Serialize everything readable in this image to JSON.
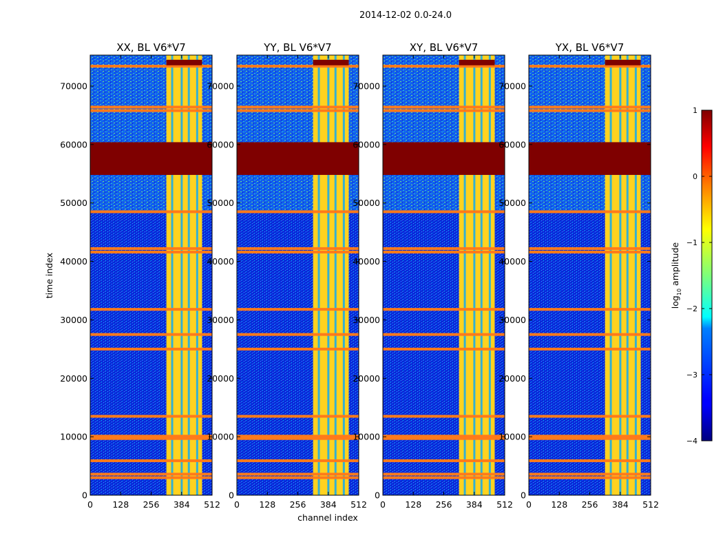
{
  "suptitle": "2014-12-02 0.0-24.0",
  "chart_data": {
    "type": "heatmap",
    "panels": [
      {
        "title": "XX, BL V6*V7"
      },
      {
        "title": "YY, BL V6*V7"
      },
      {
        "title": "XY, BL V6*V7"
      },
      {
        "title": "YX, BL V6*V7"
      }
    ],
    "xlabel": "channel index",
    "ylabel": "time index",
    "xlim": [
      0,
      512
    ],
    "ylim": [
      0,
      75300
    ],
    "xticks": [
      0,
      128,
      256,
      384,
      512
    ],
    "yticks": [
      0,
      10000,
      20000,
      30000,
      40000,
      50000,
      60000,
      70000
    ],
    "colorbar": {
      "label_main": "log",
      "label_sub": "10",
      "label_rest": " amplitude",
      "range": [
        -4,
        1
      ],
      "ticks": [
        1,
        0,
        -1,
        -2,
        -3,
        -4
      ],
      "tick_labels": [
        "1",
        "0",
        "−1",
        "−2",
        "−3",
        "−4"
      ],
      "colormap": "jet"
    },
    "saturated_time_block": [
      54800,
      60400
    ],
    "bright_channel_band": [
      320,
      470
    ],
    "rfi_time_rows": [
      3000,
      3600,
      5900,
      9700,
      10100,
      13500,
      25000,
      27500,
      31800,
      41600,
      42200,
      48500,
      65800,
      66400,
      73400
    ],
    "colors": {
      "background": "#0a28d8",
      "saturated": "#7f0000",
      "rfi_line": "#ff7a1a",
      "band": "#ffd21f"
    }
  }
}
